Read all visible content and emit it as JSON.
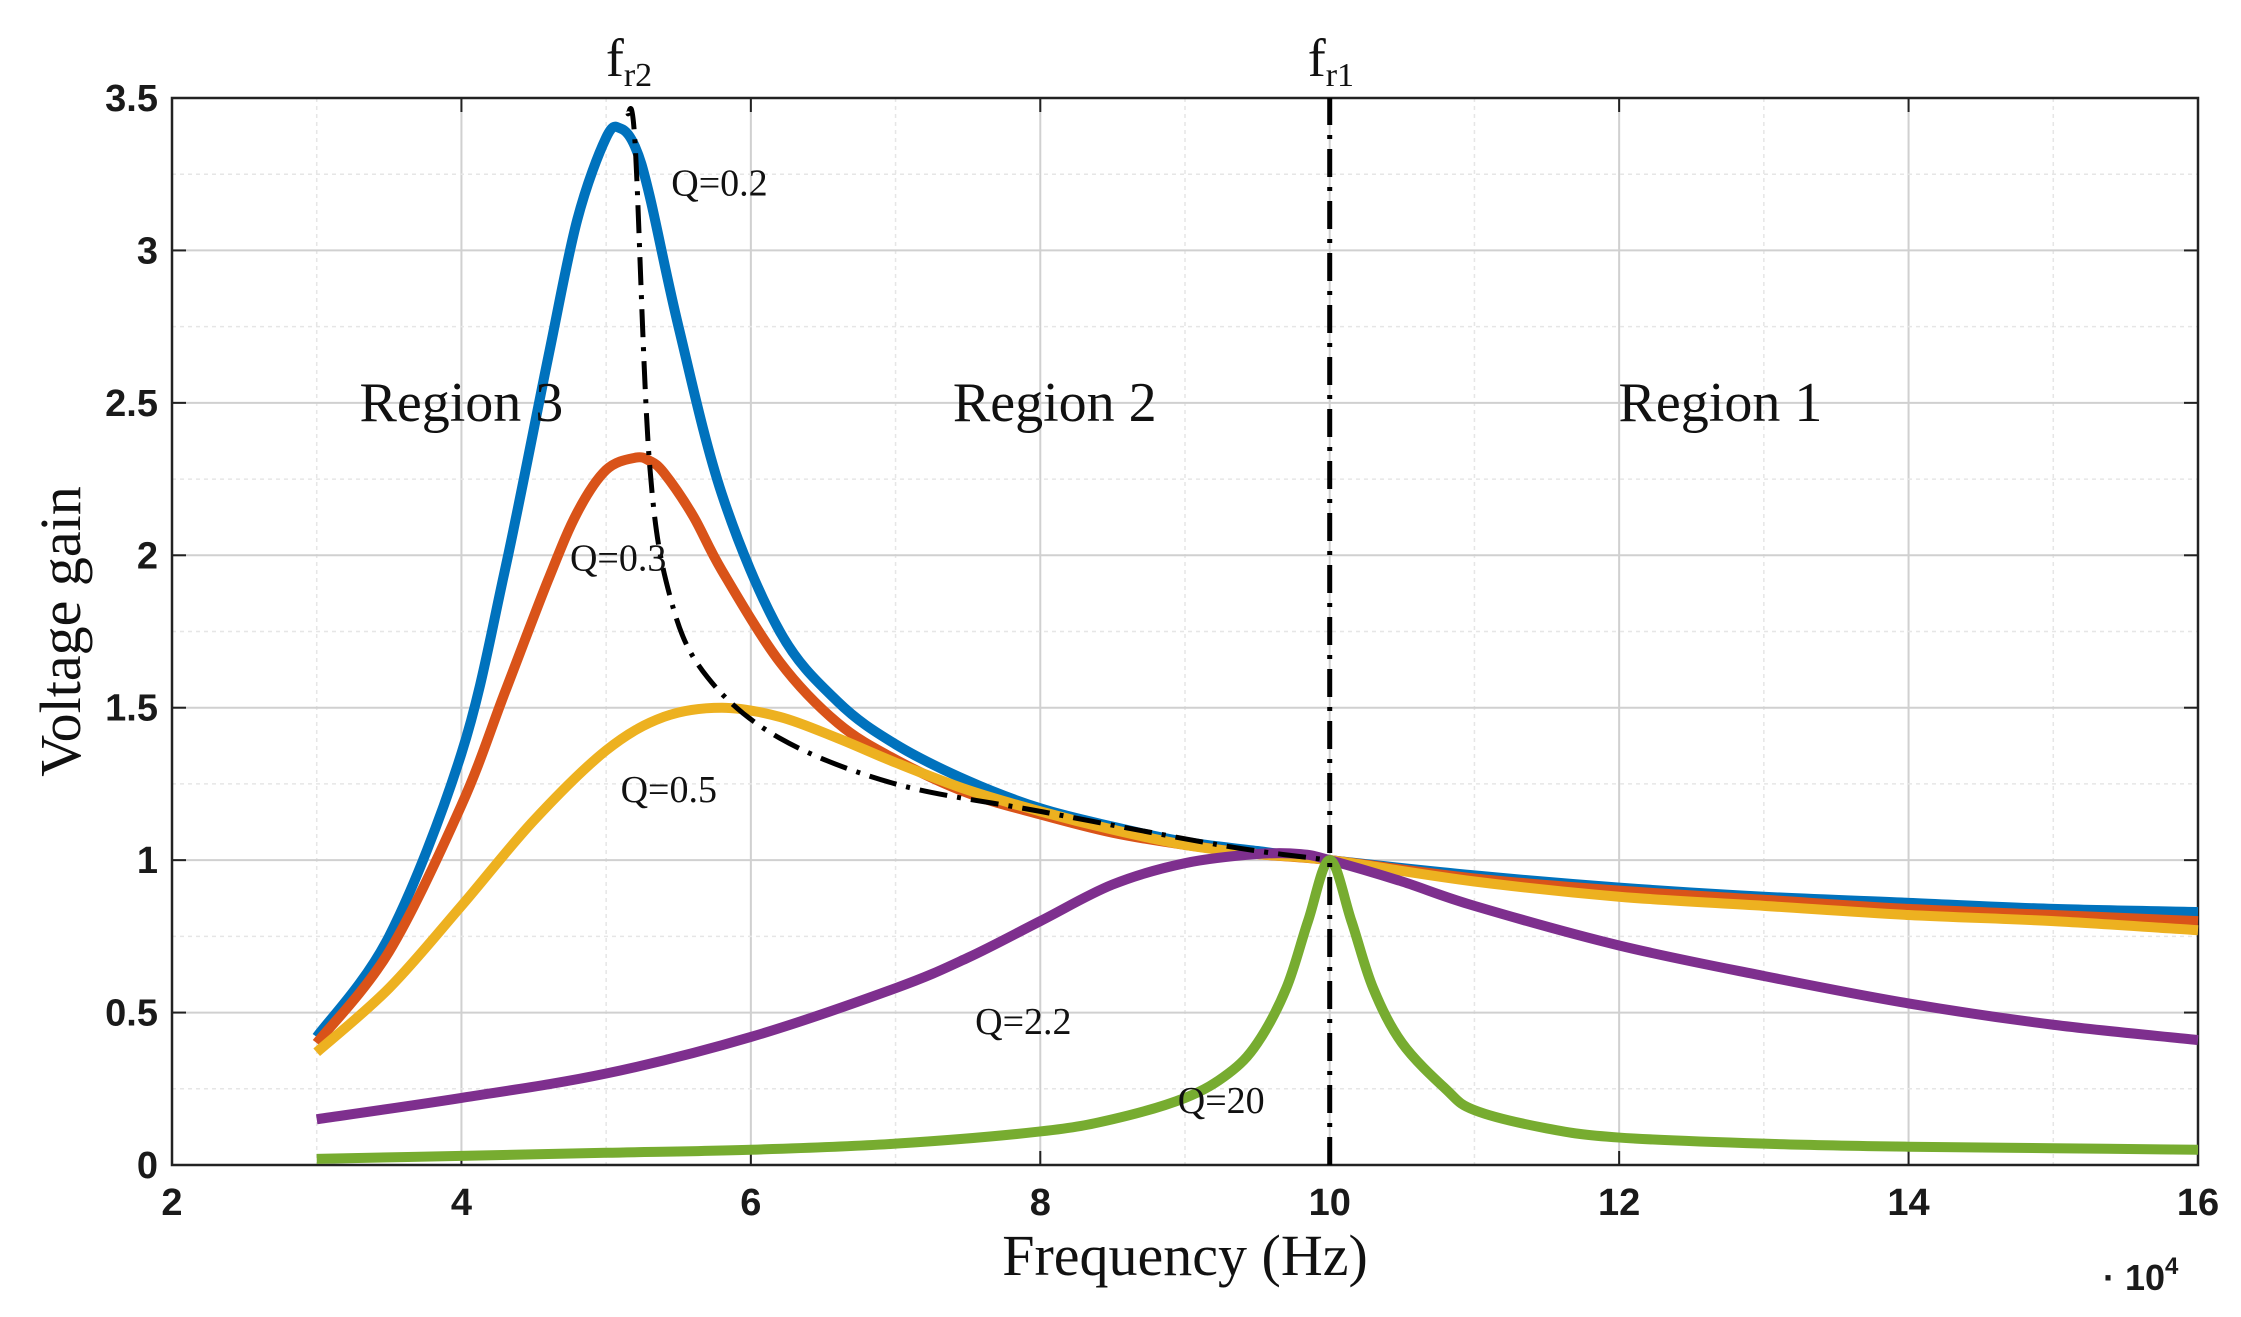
{
  "chart_data": {
    "type": "line",
    "title": "",
    "xlabel": "Frequency (Hz)",
    "ylabel": "Voltage gain",
    "x_multiplier_label": "· 10",
    "x_multiplier_exponent": "4",
    "xlim": [
      2,
      16
    ],
    "ylim": [
      0,
      3.5
    ],
    "xticks": [
      2,
      4,
      6,
      8,
      10,
      12,
      14,
      16
    ],
    "xtick_labels": [
      "2",
      "4",
      "6",
      "8",
      "10",
      "12",
      "14",
      "16"
    ],
    "yticks": [
      0,
      0.5,
      1,
      1.5,
      2,
      2.5,
      3,
      3.5
    ],
    "ytick_labels": [
      "0",
      "0.5",
      "1",
      "1.5",
      "2",
      "2.5",
      "3",
      "3.5"
    ],
    "grid": true,
    "series": [
      {
        "name": "Q=0.2",
        "label": "Q=0.2",
        "color": "#0072BD",
        "label_at": [
          5.45,
          3.18
        ],
        "x": [
          3,
          3.5,
          4,
          4.3,
          4.6,
          4.8,
          5.0,
          5.1,
          5.2,
          5.3,
          5.5,
          5.8,
          6.2,
          6.6,
          7.0,
          7.5,
          8.0,
          8.5,
          9.0,
          9.5,
          10,
          11,
          12,
          13,
          14,
          15,
          16
        ],
        "values": [
          0.42,
          0.75,
          1.35,
          1.95,
          2.65,
          3.1,
          3.37,
          3.4,
          3.34,
          3.18,
          2.75,
          2.2,
          1.75,
          1.52,
          1.38,
          1.26,
          1.17,
          1.11,
          1.06,
          1.03,
          1.0,
          0.95,
          0.91,
          0.88,
          0.86,
          0.84,
          0.83
        ]
      },
      {
        "name": "Q=0.3",
        "label": "Q=0.3",
        "color": "#D95319",
        "label_at": [
          4.75,
          1.95
        ],
        "x": [
          3,
          3.5,
          4,
          4.3,
          4.6,
          4.8,
          5.0,
          5.2,
          5.3,
          5.4,
          5.6,
          5.8,
          6.2,
          6.6,
          7.0,
          7.5,
          8.0,
          8.5,
          9.0,
          9.5,
          10,
          11,
          12,
          13,
          14,
          15,
          16
        ],
        "values": [
          0.4,
          0.7,
          1.18,
          1.55,
          1.92,
          2.14,
          2.28,
          2.32,
          2.31,
          2.27,
          2.13,
          1.95,
          1.65,
          1.45,
          1.33,
          1.22,
          1.15,
          1.09,
          1.05,
          1.02,
          1.0,
          0.94,
          0.9,
          0.87,
          0.84,
          0.82,
          0.8
        ]
      },
      {
        "name": "Q=0.5",
        "label": "Q=0.5",
        "color": "#EDB120",
        "label_at": [
          5.1,
          1.19
        ],
        "x": [
          3,
          3.5,
          4,
          4.5,
          5.0,
          5.4,
          5.8,
          6.2,
          6.6,
          7.0,
          7.5,
          8.0,
          8.5,
          9.0,
          9.5,
          10,
          11,
          12,
          13,
          14,
          15,
          16
        ],
        "values": [
          0.37,
          0.58,
          0.85,
          1.13,
          1.36,
          1.47,
          1.5,
          1.47,
          1.4,
          1.32,
          1.23,
          1.16,
          1.1,
          1.05,
          1.02,
          1.0,
          0.93,
          0.88,
          0.85,
          0.82,
          0.8,
          0.77
        ]
      },
      {
        "name": "Q=2.2",
        "label": "Q=2.2",
        "color": "#7E2F8E",
        "label_at": [
          7.55,
          0.43
        ],
        "x": [
          3,
          4,
          5,
          6,
          7,
          7.5,
          8,
          8.5,
          9.0,
          9.5,
          9.8,
          10,
          10.5,
          11,
          12,
          13,
          14,
          15,
          16
        ],
        "values": [
          0.15,
          0.22,
          0.3,
          0.42,
          0.58,
          0.68,
          0.8,
          0.92,
          0.99,
          1.02,
          1.02,
          1.0,
          0.93,
          0.85,
          0.72,
          0.62,
          0.53,
          0.46,
          0.41
        ]
      },
      {
        "name": "Q=20",
        "label": "Q=20",
        "color": "#77AC30",
        "label_at": [
          8.95,
          0.17
        ],
        "x": [
          3,
          4,
          5,
          6,
          7,
          8,
          8.5,
          9.0,
          9.3,
          9.5,
          9.7,
          9.85,
          10,
          10.15,
          10.3,
          10.5,
          10.8,
          11,
          11.5,
          12,
          13,
          14,
          15,
          16
        ],
        "values": [
          0.02,
          0.03,
          0.04,
          0.05,
          0.07,
          0.11,
          0.15,
          0.22,
          0.3,
          0.4,
          0.58,
          0.8,
          1.0,
          0.8,
          0.58,
          0.4,
          0.25,
          0.18,
          0.12,
          0.09,
          0.07,
          0.06,
          0.055,
          0.05
        ]
      }
    ],
    "reference_lines": [
      {
        "name": "peak-locus",
        "style": "dash-dot",
        "color": "#000000",
        "x": [
          5.15,
          5.2,
          5.3,
          5.45,
          5.7,
          6.2,
          7.0,
          8.0,
          9.0,
          9.5,
          10.0
        ],
        "values": [
          3.45,
          3.35,
          2.3,
          1.85,
          1.6,
          1.4,
          1.25,
          1.16,
          1.07,
          1.03,
          1.0
        ]
      },
      {
        "name": "fr1-line",
        "style": "dash-dot",
        "color": "#000000",
        "x": [
          10,
          10
        ],
        "values": [
          0,
          3.5
        ]
      }
    ],
    "annotations": {
      "fr2": {
        "base": "f",
        "sub": "r2",
        "x": 5.15
      },
      "fr1": {
        "base": "f",
        "sub": "r1",
        "x": 10.0
      },
      "regions": [
        {
          "text": "Region 3",
          "x": 4.0,
          "y": 2.5
        },
        {
          "text": "Region 2",
          "x": 8.1,
          "y": 2.5
        },
        {
          "text": "Region 1",
          "x": 12.7,
          "y": 2.5
        }
      ]
    }
  }
}
